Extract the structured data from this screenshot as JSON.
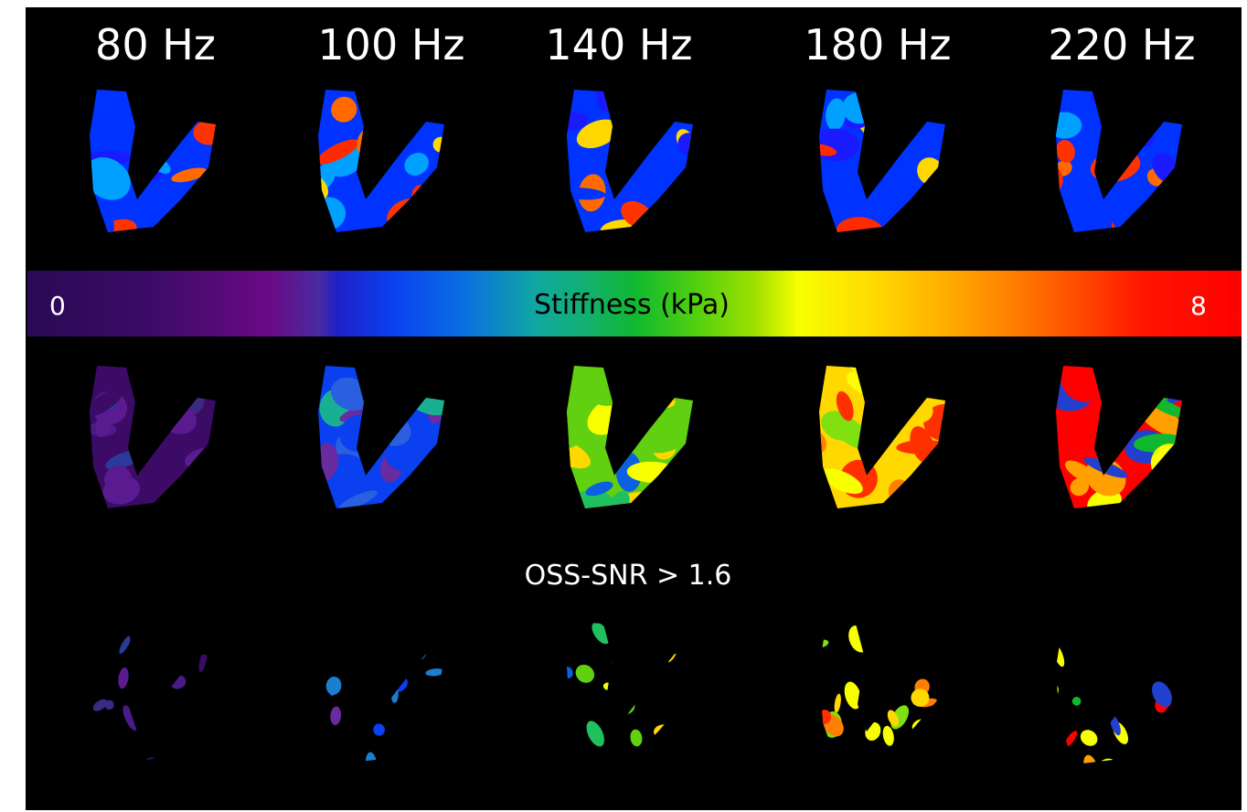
{
  "frequencies": [
    "80 Hz",
    "100 Hz",
    "140 Hz",
    "180 Hz",
    "220 Hz"
  ],
  "colorbar": {
    "label": "Stiffness (kPa)",
    "min": "0",
    "max": "8",
    "colors": [
      "#2a0a55",
      "#6a0a85",
      "#0a40f0",
      "#10b830",
      "#f8ff00",
      "#ff8000",
      "#ff0000"
    ]
  },
  "threshold_label": "OSS-SNR > 1.6",
  "rows": {
    "wave_images": "Top row: wave displacement maps (red/blue/yellow)",
    "stiffness_maps": "Middle row: stiffness maps",
    "masked_maps": "Bottom row: stiffness maps masked by threshold"
  },
  "palettes": {
    "wave": [
      "#ff2a00",
      "#0033ff",
      "#ff6a00",
      "#1a1aff",
      "#ffd800",
      "#ff3300",
      "#00a0ff"
    ],
    "stiffness": [
      [
        "#3b0b66",
        "#4a1a88",
        "#2a3a9a",
        "#5a1a90",
        "#3a2a80"
      ],
      [
        "#0a40f0",
        "#1a7fd0",
        "#18b090",
        "#2a60e0",
        "#6a2aa0"
      ],
      [
        "#60d010",
        "#f8ff00",
        "#ffd800",
        "#20c060",
        "#0a60e0"
      ],
      [
        "#ffd800",
        "#ff8000",
        "#80e010",
        "#f8ff00",
        "#ff3000"
      ],
      [
        "#ff0000",
        "#ffa000",
        "#2040d0",
        "#10b830",
        "#f8ff00"
      ]
    ]
  }
}
